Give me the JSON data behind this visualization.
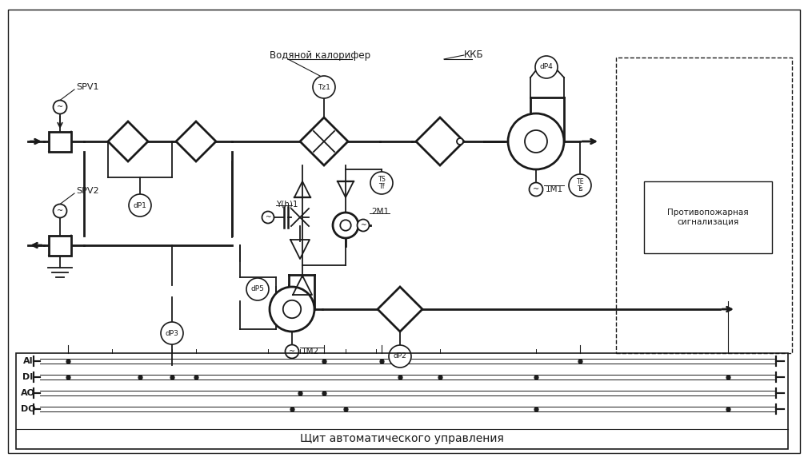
{
  "bg_color": "#ffffff",
  "line_color": "#1a1a1a",
  "text_color": "#1a1a1a",
  "labels": {
    "SPV1": "SPV1",
    "SPV2": "SPV2",
    "dP1": "dP1",
    "dP2": "dP2",
    "dP3": "dP3",
    "dP4": "dP4",
    "dP5": "dP5",
    "Tz1": "Tz1",
    "TS_Tf": "TS\nTf",
    "TE_Ts": "TE\nTs",
    "Yh1": "Y(h)1",
    "2M1": "2M1",
    "1M1": "1M1",
    "1M2": "1M2",
    "vod_cal": "Водяной калорифер",
    "kkb": "ККБ",
    "panel": "Щит автоматического управления",
    "fire": "Противопожарная\nсигнализация",
    "AI": "AI",
    "DI": "DI",
    "AO": "AO",
    "DO": "DO"
  },
  "figsize": [
    10.05,
    5.77
  ],
  "dpi": 100,
  "xlim": [
    0,
    100.5
  ],
  "ylim": [
    0,
    57.7
  ]
}
